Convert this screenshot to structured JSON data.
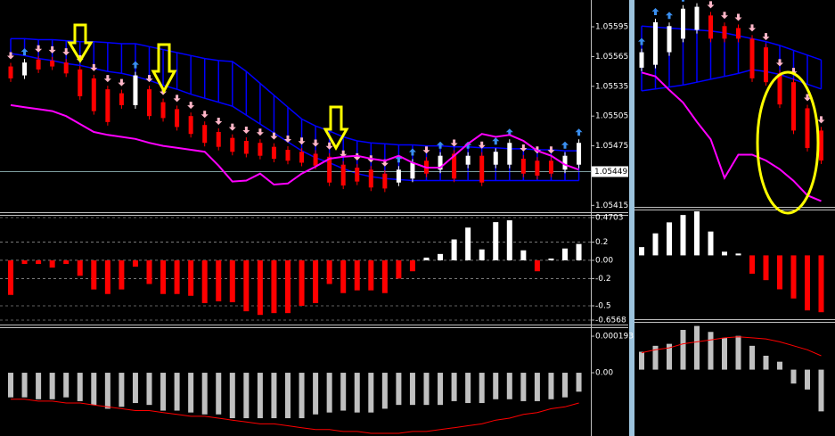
{
  "chart_data": [
    {
      "type": "candlestick",
      "ylim": [
        1.05409,
        1.05622
      ],
      "yticks": [
        1.05595,
        1.05565,
        1.05535,
        1.05505,
        1.05475,
        1.05415
      ],
      "price_label": 1.05449,
      "up_color": "#ffffff",
      "down_color": "#ff0000",
      "open": [
        1.05555,
        1.05546,
        1.05562,
        1.05561,
        1.05559,
        1.05552,
        1.05543,
        1.05532,
        1.05528,
        1.05516,
        1.05532,
        1.05519,
        1.05512,
        1.05505,
        1.05496,
        1.05489,
        1.05483,
        1.0548,
        1.05478,
        1.05474,
        1.05471,
        1.05469,
        1.05467,
        1.05464,
        1.05456,
        1.05453,
        1.05451,
        1.05447,
        1.05438,
        1.05442,
        1.0546,
        1.05451,
        1.05467,
        1.05456,
        1.05465,
        1.05456,
        1.05456,
        1.05462,
        1.0546,
        1.0546,
        1.05451,
        1.05456
      ],
      "close": [
        1.05543,
        1.05559,
        1.05552,
        1.05555,
        1.05548,
        1.05525,
        1.0551,
        1.05499,
        1.05516,
        1.05546,
        1.05505,
        1.05503,
        1.05494,
        1.05487,
        1.05478,
        1.05474,
        1.05469,
        1.05467,
        1.05465,
        1.05462,
        1.0546,
        1.05458,
        1.05455,
        1.05438,
        1.05435,
        1.05439,
        1.05433,
        1.05432,
        1.05451,
        1.05458,
        1.05447,
        1.05465,
        1.05442,
        1.05465,
        1.05438,
        1.05469,
        1.05478,
        1.05447,
        1.05445,
        1.05447,
        1.05465,
        1.05478
      ],
      "series": [
        {
          "color": "#0000ff",
          "values": [
            1.05583,
            1.05583,
            1.05582,
            1.05582,
            1.05581,
            1.0558,
            1.0558,
            1.05579,
            1.05578,
            1.05578,
            1.05575,
            1.05572,
            1.05569,
            1.05566,
            1.05563,
            1.05561,
            1.0556,
            1.0555,
            1.05538,
            1.05526,
            1.05514,
            1.05502,
            1.05495,
            1.0549,
            1.05484,
            1.0548,
            1.05478,
            1.05477,
            1.05476,
            1.05476,
            1.05475,
            1.05475,
            1.05474,
            1.05474,
            1.05473,
            1.05473,
            1.05472,
            1.05472,
            1.05471,
            1.05471,
            1.0547,
            1.0547
          ]
        },
        {
          "color": "#0000ff",
          "values": [
            1.05568,
            1.05566,
            1.05563,
            1.05561,
            1.05558,
            1.05556,
            1.05553,
            1.0555,
            1.05548,
            1.05545,
            1.05541,
            1.05536,
            1.05532,
            1.05527,
            1.05523,
            1.05519,
            1.05515,
            1.05506,
            1.05497,
            1.05488,
            1.05479,
            1.0547,
            1.05463,
            1.05458,
            1.05452,
            1.05447,
            1.05444,
            1.05442,
            1.05441,
            1.0544,
            1.0544,
            1.0544,
            1.0544,
            1.0544,
            1.0544,
            1.0544,
            1.0544,
            1.0544,
            1.0544,
            1.0544,
            1.0544,
            1.0544
          ]
        },
        {
          "color": "#ff00ff",
          "values": [
            1.05516,
            1.05514,
            1.05512,
            1.0551,
            1.05505,
            1.05497,
            1.05489,
            1.05486,
            1.05484,
            1.05482,
            1.05478,
            1.05475,
            1.05473,
            1.05471,
            1.05469,
            1.05455,
            1.05439,
            1.0544,
            1.05447,
            1.05436,
            1.05437,
            1.05447,
            1.05454,
            1.05462,
            1.05464,
            1.05465,
            1.05462,
            1.0546,
            1.05465,
            1.05458,
            1.05453,
            1.05453,
            1.05465,
            1.05477,
            1.05487,
            1.05484,
            1.05486,
            1.0548,
            1.0547,
            1.05465,
            1.05456,
            1.05451
          ]
        }
      ]
    },
    {
      "type": "bar",
      "ylim": [
        -0.6862,
        0.5095
      ],
      "yticks": [
        0.4703,
        0.2,
        {
          "value": 0,
          "label": "0.00"
        },
        -0.2,
        -0.5,
        -0.6568
      ],
      "grid": true,
      "up_color": "#ffffff",
      "down_color": "#ff0000",
      "values": [
        -0.38,
        -0.04,
        -0.04,
        -0.08,
        -0.04,
        -0.17,
        -0.32,
        -0.37,
        -0.32,
        -0.07,
        -0.26,
        -0.37,
        -0.37,
        -0.39,
        -0.47,
        -0.45,
        -0.46,
        -0.56,
        -0.6,
        -0.58,
        -0.58,
        -0.5,
        -0.47,
        -0.26,
        -0.36,
        -0.33,
        -0.33,
        -0.36,
        -0.2,
        -0.12,
        0.03,
        0.07,
        0.23,
        0.36,
        0.12,
        0.42,
        0.44,
        0.11,
        -0.12,
        0.02,
        0.13,
        0.18
      ]
    },
    {
      "type": "bar",
      "ylim": [
        -0.000334,
        0.000245
      ],
      "yticks": [
        0.000193,
        {
          "value": 0,
          "label": "0.00"
        }
      ],
      "series": [
        {
          "color": "#c0c0c0",
          "values": [
            -0.00013,
            -0.00013,
            -0.00014,
            -0.00014,
            -0.00013,
            -0.00015,
            -0.00017,
            -0.00019,
            -0.00018,
            -0.00016,
            -0.00017,
            -0.0002,
            -0.0002,
            -0.00021,
            -0.00022,
            -0.00022,
            -0.00024,
            -0.00024,
            -0.00024,
            -0.00024,
            -0.00024,
            -0.00024,
            -0.00022,
            -0.00021,
            -0.0002,
            -0.00021,
            -0.00021,
            -0.00019,
            -0.00017,
            -0.00017,
            -0.00017,
            -0.00017,
            -0.00015,
            -0.00016,
            -0.00016,
            -0.00014,
            -0.00014,
            -0.00015,
            -0.00015,
            -0.00014,
            -0.00013,
            -0.0001
          ]
        },
        {
          "color": "#ff0000",
          "values": [
            -0.00014,
            -0.00014,
            -0.00015,
            -0.00015,
            -0.00016,
            -0.00016,
            -0.00017,
            -0.00018,
            -0.00019,
            -0.0002,
            -0.0002,
            -0.00021,
            -0.00022,
            -0.00023,
            -0.00023,
            -0.00024,
            -0.00025,
            -0.00026,
            -0.00027,
            -0.00027,
            -0.00028,
            -0.00029,
            -0.0003,
            -0.0003,
            -0.00031,
            -0.00031,
            -0.00032,
            -0.00032,
            -0.00032,
            -0.00031,
            -0.00031,
            -0.0003,
            -0.00029,
            -0.00028,
            -0.00027,
            -0.00025,
            -0.00024,
            -0.00022,
            -0.00021,
            -0.00019,
            -0.00018,
            -0.00016
          ]
        }
      ]
    },
    {
      "type": "candlestick",
      "ylim": [
        1.05409,
        1.05622
      ],
      "up_color": "#ffffff",
      "down_color": "#ff0000",
      "open": [
        1.05552,
        1.05555,
        1.05568,
        1.05582,
        1.05591,
        1.05606,
        1.05595,
        1.05593,
        1.05582,
        1.05573,
        1.05546,
        1.05537,
        1.0551,
        1.05487
      ],
      "close": [
        1.05568,
        1.05599,
        1.05595,
        1.05613,
        1.05615,
        1.05582,
        1.05582,
        1.05582,
        1.05541,
        1.05537,
        1.05514,
        1.05487,
        1.05469,
        1.05456
      ],
      "series": [
        {
          "color": "#0000ff",
          "values": [
            1.05595,
            1.05594,
            1.05593,
            1.05592,
            1.05591,
            1.0559,
            1.05588,
            1.05585,
            1.05582,
            1.05579,
            1.05575,
            1.0557,
            1.05565,
            1.0556
          ]
        },
        {
          "color": "#0000ff",
          "values": [
            1.05528,
            1.0553,
            1.05532,
            1.05534,
            1.05537,
            1.0554,
            1.05543,
            1.05546,
            1.0555,
            1.05548,
            1.05545,
            1.0554,
            1.05535,
            1.0553
          ]
        },
        {
          "color": "#ff00ff",
          "values": [
            1.05547,
            1.05543,
            1.05529,
            1.05516,
            1.05496,
            1.05478,
            1.05438,
            1.05462,
            1.05462,
            1.05456,
            1.05447,
            1.05435,
            1.0542,
            1.05414
          ]
        }
      ]
    },
    {
      "type": "bar",
      "ylim": [
        -0.6862,
        0.5095
      ],
      "up_color": "#ffffff",
      "down_color": "#ff0000",
      "values": [
        0.09,
        0.24,
        0.36,
        0.44,
        0.48,
        0.26,
        0.04,
        0.02,
        -0.2,
        -0.27,
        -0.37,
        -0.47,
        -0.6,
        -0.62
      ]
    },
    {
      "type": "bar",
      "ylim": [
        -0.000334,
        0.000245
      ],
      "series": [
        {
          "color": "#c0c0c0",
          "values": [
            9e-05,
            0.00012,
            0.00013,
            0.0002,
            0.00022,
            0.00019,
            0.00016,
            0.00017,
            0.00012,
            7e-05,
            4e-05,
            -7e-05,
            -0.0001,
            -0.00021
          ]
        },
        {
          "color": "#ff0000",
          "values": [
            8.5e-05,
            0.0001,
            0.00011,
            0.00013,
            0.00014,
            0.00015,
            0.00016,
            0.000165,
            0.00016,
            0.000155,
            0.00014,
            0.00012,
            0.0001,
            7e-05
          ]
        }
      ]
    }
  ]
}
